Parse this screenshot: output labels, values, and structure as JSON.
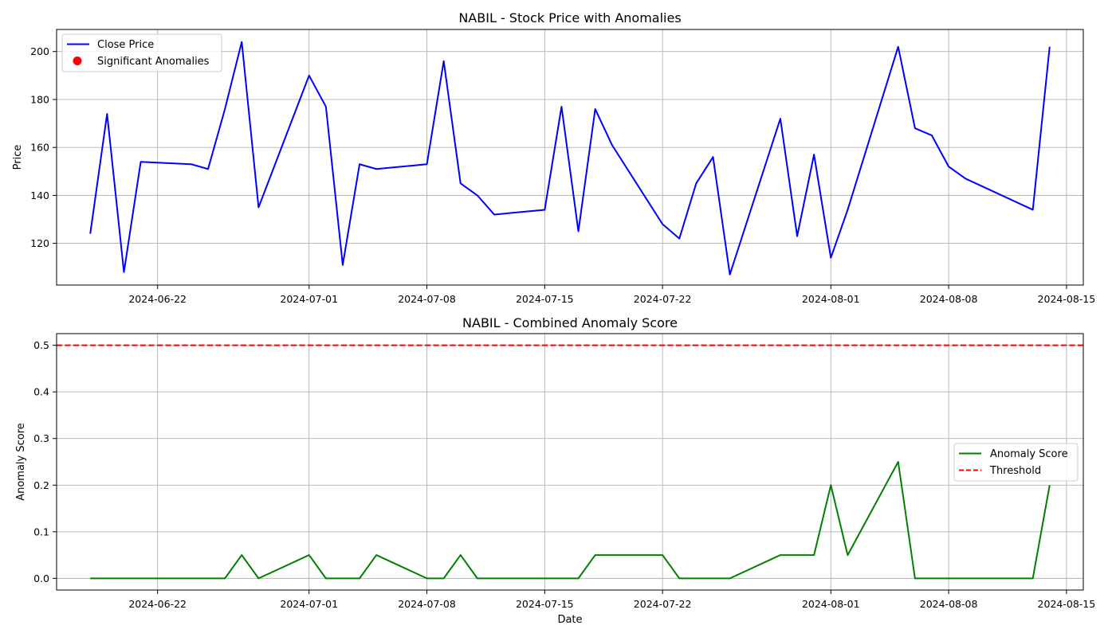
{
  "chart_data": [
    {
      "type": "line",
      "title": "NABIL - Stock Price with Anomalies",
      "xlabel": "",
      "ylabel": "Price",
      "x_type": "date",
      "xlim": [
        "2024-06-16",
        "2024-08-16"
      ],
      "ylim": [
        102.6,
        209.2
      ],
      "x_ticks": [
        "2024-06-22",
        "2024-07-01",
        "2024-07-08",
        "2024-07-15",
        "2024-08-01",
        "2024-08-08",
        "2024-08-15",
        "2024-07-22"
      ],
      "x_tick_labels": [
        "2024-06-22",
        "2024-07-01",
        "2024-07-08",
        "2024-07-15",
        "2024-08-01",
        "2024-08-08",
        "2024-08-15",
        "2024-07-22"
      ],
      "y_ticks": [
        120,
        140,
        160,
        180,
        200
      ],
      "y_tick_labels": [
        "120",
        "140",
        "160",
        "180",
        "200"
      ],
      "grid": true,
      "legend_position": "top-left",
      "series": [
        {
          "name": "Close Price",
          "color": "#0000ff",
          "style": "solid",
          "points": [
            [
              "2024-06-18",
              124
            ],
            [
              "2024-06-19",
              174
            ],
            [
              "2024-06-20",
              108
            ],
            [
              "2024-06-21",
              154
            ],
            [
              "2024-06-24",
              153
            ],
            [
              "2024-06-25",
              151
            ],
            [
              "2024-06-26",
              176
            ],
            [
              "2024-06-27",
              204
            ],
            [
              "2024-06-28",
              135
            ],
            [
              "2024-07-01",
              190
            ],
            [
              "2024-07-02",
              177
            ],
            [
              "2024-07-03",
              111
            ],
            [
              "2024-07-04",
              153
            ],
            [
              "2024-07-05",
              151
            ],
            [
              "2024-07-08",
              153
            ],
            [
              "2024-07-09",
              196
            ],
            [
              "2024-07-10",
              145
            ],
            [
              "2024-07-11",
              140
            ],
            [
              "2024-07-12",
              132
            ],
            [
              "2024-07-15",
              134
            ],
            [
              "2024-07-16",
              177
            ],
            [
              "2024-07-17",
              125
            ],
            [
              "2024-07-18",
              176
            ],
            [
              "2024-07-19",
              161
            ],
            [
              "2024-07-22",
              128
            ],
            [
              "2024-07-23",
              122
            ],
            [
              "2024-07-24",
              145
            ],
            [
              "2024-07-25",
              156
            ],
            [
              "2024-07-26",
              107
            ],
            [
              "2024-07-29",
              172
            ],
            [
              "2024-07-30",
              123
            ],
            [
              "2024-07-31",
              157
            ],
            [
              "2024-08-01",
              114
            ],
            [
              "2024-08-02",
              134
            ],
            [
              "2024-08-05",
              202
            ],
            [
              "2024-08-06",
              168
            ],
            [
              "2024-08-07",
              165
            ],
            [
              "2024-08-08",
              152
            ],
            [
              "2024-08-09",
              147
            ],
            [
              "2024-08-13",
              134
            ],
            [
              "2024-08-14",
              202
            ]
          ]
        },
        {
          "name": "Significant Anomalies",
          "color": "#ff0000",
          "style": "marker",
          "points": []
        }
      ]
    },
    {
      "type": "line",
      "title": "NABIL - Combined Anomaly Score",
      "xlabel": "Date",
      "ylabel": "Anomaly Score",
      "x_type": "date",
      "xlim": [
        "2024-06-16",
        "2024-08-16"
      ],
      "ylim": [
        -0.025,
        0.525
      ],
      "x_ticks": [
        "2024-06-22",
        "2024-07-01",
        "2024-07-08",
        "2024-07-15",
        "2024-07-22",
        "2024-08-01",
        "2024-08-08",
        "2024-08-15"
      ],
      "x_tick_labels": [
        "2024-06-22",
        "2024-07-01",
        "2024-07-08",
        "2024-07-15",
        "2024-07-22",
        "2024-08-01",
        "2024-08-08",
        "2024-08-15"
      ],
      "y_ticks": [
        0.0,
        0.1,
        0.2,
        0.3,
        0.4,
        0.5
      ],
      "y_tick_labels": [
        "0.0",
        "0.1",
        "0.2",
        "0.3",
        "0.4",
        "0.5"
      ],
      "grid": true,
      "legend_position": "center-right",
      "threshold": 0.5,
      "series": [
        {
          "name": "Anomaly Score",
          "color": "#008000",
          "style": "solid",
          "points": [
            [
              "2024-06-18",
              0
            ],
            [
              "2024-06-26",
              0
            ],
            [
              "2024-06-27",
              0.05
            ],
            [
              "2024-06-28",
              0
            ],
            [
              "2024-07-01",
              0.05
            ],
            [
              "2024-07-02",
              0
            ],
            [
              "2024-07-04",
              0
            ],
            [
              "2024-07-05",
              0.05
            ],
            [
              "2024-07-08",
              0
            ],
            [
              "2024-07-09",
              0
            ],
            [
              "2024-07-10",
              0.05
            ],
            [
              "2024-07-11",
              0
            ],
            [
              "2024-07-17",
              0
            ],
            [
              "2024-07-18",
              0.05
            ],
            [
              "2024-07-22",
              0.05
            ],
            [
              "2024-07-23",
              0
            ],
            [
              "2024-07-26",
              0
            ],
            [
              "2024-07-29",
              0.05
            ],
            [
              "2024-07-31",
              0.05
            ],
            [
              "2024-08-01",
              0.2
            ],
            [
              "2024-08-02",
              0.05
            ],
            [
              "2024-08-05",
              0.25
            ],
            [
              "2024-08-06",
              0
            ],
            [
              "2024-08-13",
              0
            ],
            [
              "2024-08-14",
              0.2
            ]
          ]
        },
        {
          "name": "Threshold",
          "color": "#ff0000",
          "style": "dashed",
          "points": [
            [
              "2024-06-16",
              0.5
            ],
            [
              "2024-08-16",
              0.5
            ]
          ]
        }
      ]
    }
  ]
}
